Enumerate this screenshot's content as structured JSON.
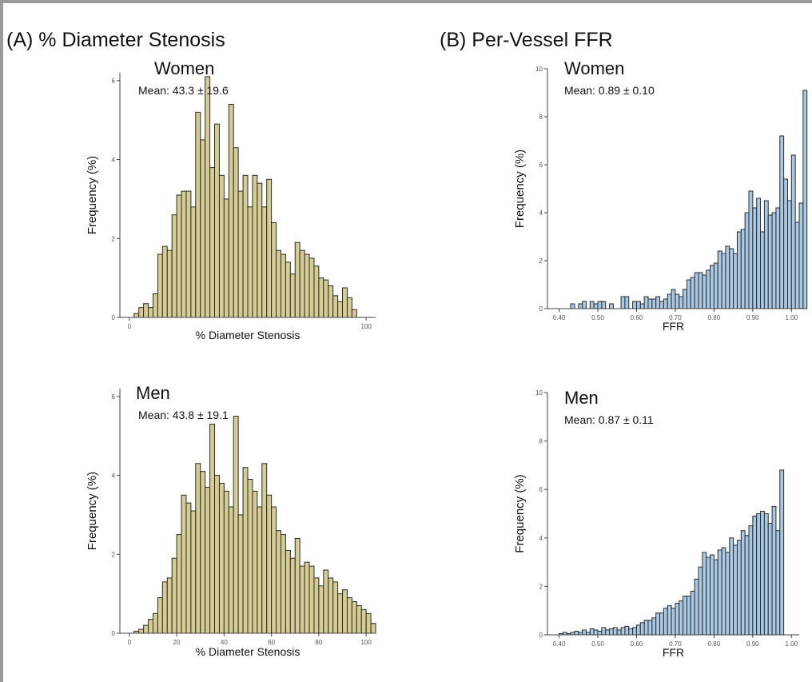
{
  "panels": {
    "a_title": "(A) % Diameter Stenosis",
    "b_title": "(B) Per-Vessel FFR"
  },
  "chart_data": [
    {
      "type": "bar",
      "group": "Women",
      "annotation": "Mean: 43.3 ± 19.6",
      "xlabel": "% Diameter Stenosis",
      "ylabel": "Frequency (%)",
      "xlim": [
        -4,
        104
      ],
      "ylim": [
        0,
        6.2
      ],
      "x_ticks": [
        "0",
        "100"
      ],
      "x_tick_values": [
        0,
        100
      ],
      "y_ticks": [
        "0",
        "2",
        "4",
        "6"
      ],
      "y_tick_values": [
        0,
        2,
        4,
        6
      ],
      "bin_start": 2,
      "bin_width": 2,
      "color": "#d5cc94",
      "values": [
        0.1,
        0.25,
        0.35,
        0.25,
        0.6,
        1.6,
        1.8,
        1.7,
        2.6,
        3.1,
        3.2,
        3.2,
        2.8,
        5.2,
        4.5,
        6.1,
        3.8,
        4.9,
        3.6,
        3.0,
        5.4,
        4.3,
        3.2,
        3.6,
        2.8,
        3.6,
        3.4,
        2.8,
        3.5,
        2.4,
        1.7,
        1.6,
        1.4,
        1.1,
        1.9,
        1.7,
        1.6,
        1.5,
        1.3,
        1.0,
        0.95,
        0.8,
        0.55,
        0.4,
        0.75,
        0.5,
        0.2
      ]
    },
    {
      "type": "bar",
      "group": "Men",
      "annotation": "Mean: 43.8 ± 19.1",
      "xlabel": "% Diameter Stenosis",
      "ylabel": "Frequency (%)",
      "xlim": [
        -4,
        104
      ],
      "ylim": [
        0,
        6.2
      ],
      "x_ticks": [
        "0",
        "20",
        "40",
        "60",
        "80",
        "100"
      ],
      "x_tick_values": [
        0,
        20,
        40,
        60,
        80,
        100
      ],
      "y_ticks": [
        "0",
        "2",
        "4",
        "6"
      ],
      "y_tick_values": [
        0,
        2,
        4,
        6
      ],
      "bin_start": 2,
      "bin_width": 2,
      "color": "#d5cc94",
      "values": [
        0.05,
        0.1,
        0.2,
        0.35,
        0.5,
        0.9,
        1.3,
        1.4,
        1.9,
        2.5,
        3.5,
        3.3,
        3.1,
        4.3,
        4.1,
        3.7,
        5.3,
        4.0,
        3.8,
        3.6,
        3.2,
        5.5,
        3.0,
        4.2,
        3.9,
        3.6,
        3.2,
        4.3,
        3.5,
        3.2,
        2.6,
        2.5,
        2.1,
        1.9,
        2.4,
        1.7,
        1.8,
        1.7,
        1.4,
        1.2,
        1.6,
        1.4,
        1.3,
        1.0,
        1.1,
        0.9,
        0.8,
        0.7,
        0.6,
        0.5,
        0.25
      ]
    },
    {
      "type": "bar",
      "group": "Women",
      "annotation": "Mean: 0.89 ± 0.10",
      "xlabel": "FFR",
      "ylabel": "Frequency (%)",
      "xlim": [
        0.37,
        1.02
      ],
      "ylim": [
        0,
        10
      ],
      "x_ticks": [
        "0.40",
        "0.50",
        "0.60",
        "0.70",
        "0.80",
        "0.90",
        "1.00"
      ],
      "x_tick_values": [
        0.4,
        0.5,
        0.6,
        0.7,
        0.8,
        0.9,
        1.0
      ],
      "y_ticks": [
        "0",
        "2",
        "4",
        "6",
        "8",
        "10"
      ],
      "y_tick_values": [
        0,
        2,
        4,
        6,
        8,
        10
      ],
      "bin_start": 0.43,
      "bin_width": 0.01,
      "color": "#a9c8e4",
      "values": [
        0.2,
        0.0,
        0.2,
        0.3,
        0.0,
        0.3,
        0.2,
        0.3,
        0.3,
        0.0,
        0.2,
        0.0,
        0.0,
        0.5,
        0.5,
        0.0,
        0.3,
        0.3,
        0.2,
        0.5,
        0.4,
        0.4,
        0.5,
        0.3,
        0.4,
        0.6,
        0.8,
        0.6,
        0.5,
        0.8,
        1.2,
        1.3,
        1.5,
        1.5,
        1.4,
        1.6,
        1.8,
        1.9,
        2.4,
        2.3,
        2.6,
        2.5,
        2.3,
        3.2,
        3.3,
        4.0,
        4.9,
        4.2,
        4.6,
        3.2,
        4.5,
        3.9,
        4.0,
        4.2,
        7.2,
        5.4,
        4.5,
        6.4,
        3.6,
        4.4,
        9.1
      ]
    },
    {
      "type": "bar",
      "group": "Men",
      "annotation": "Mean: 0.87 ± 0.11",
      "xlabel": "FFR",
      "ylabel": "Frequency (%)",
      "xlim": [
        0.37,
        1.02
      ],
      "ylim": [
        0,
        10
      ],
      "x_ticks": [
        "0.40",
        "0.50",
        "0.60",
        "0.70",
        "0.80",
        "0.90",
        "1.00"
      ],
      "x_tick_values": [
        0.4,
        0.5,
        0.6,
        0.7,
        0.8,
        0.9,
        1.0
      ],
      "y_ticks": [
        "0",
        "2",
        "4",
        "6",
        "8",
        "10"
      ],
      "y_tick_values": [
        0,
        2,
        4,
        6,
        8,
        10
      ],
      "bin_start": 0.4,
      "bin_width": 0.01,
      "color": "#a9c8e4",
      "values": [
        0.05,
        0.1,
        0.05,
        0.1,
        0.15,
        0.1,
        0.2,
        0.1,
        0.25,
        0.2,
        0.15,
        0.3,
        0.2,
        0.25,
        0.3,
        0.2,
        0.3,
        0.35,
        0.25,
        0.3,
        0.4,
        0.5,
        0.6,
        0.6,
        0.7,
        0.9,
        0.9,
        1.1,
        1.2,
        1.1,
        1.3,
        1.4,
        1.6,
        1.6,
        1.8,
        2.3,
        2.8,
        3.4,
        3.2,
        3.3,
        3.1,
        3.5,
        3.6,
        3.4,
        4.0,
        3.7,
        3.9,
        4.3,
        4.1,
        4.5,
        4.9,
        5.0,
        5.1,
        5.0,
        4.6,
        5.3,
        4.3,
        6.8
      ]
    }
  ]
}
